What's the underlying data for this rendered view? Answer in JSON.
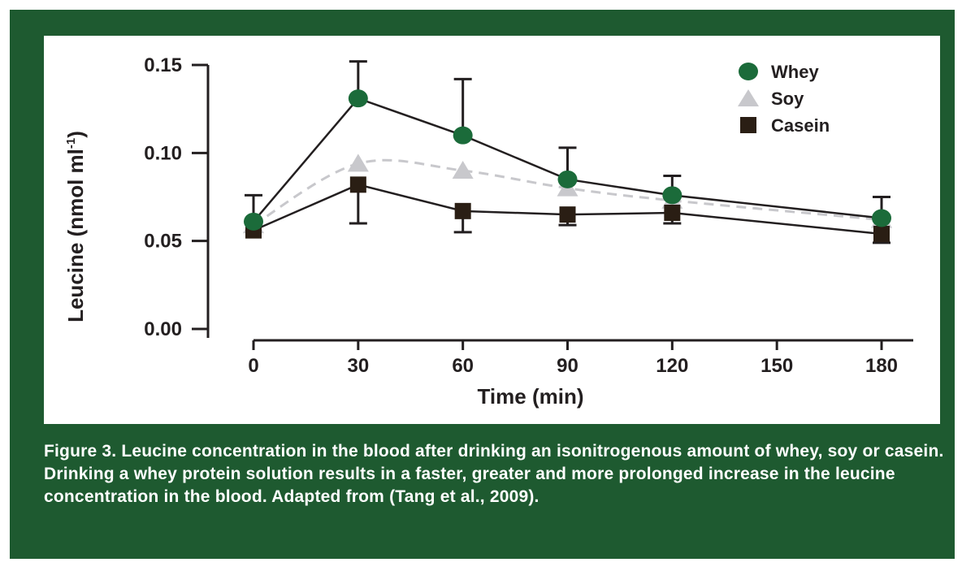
{
  "caption": "Figure 3. Leucine concentration in the blood after drinking an isonitrogenous amount of whey, soy or casein. Drinking a whey protein solution results in a faster, greater and more prolonged increase in the leucine concentration in the blood. Adapted from (Tang et al., 2009).",
  "colors": {
    "frame": "#1e5a30",
    "whey": "#1b6b3a",
    "soy": "#c8c8cc",
    "casein": "#2a1e14",
    "axis": "#231f20"
  },
  "chart_data": {
    "type": "line",
    "xlabel": "Time (min)",
    "ylabel_main": "Leucine (nmol ml",
    "ylabel_sup": "-1",
    "ylabel_close": ")",
    "xlim": [
      0,
      180
    ],
    "ylim": [
      0,
      0.15
    ],
    "xticks": [
      0,
      30,
      60,
      90,
      120,
      150,
      180
    ],
    "xtick_labels": [
      "0",
      "30",
      "60",
      "90",
      "120",
      "150",
      "180"
    ],
    "yticks": [
      0.0,
      0.05,
      0.1,
      0.15
    ],
    "ytick_labels": [
      "0.00",
      "0.05",
      "0.10",
      "0.15"
    ],
    "legend_position": "top-right",
    "series": [
      {
        "name": "Whey",
        "marker": "circle",
        "line": "solid",
        "x": [
          0,
          30,
          60,
          90,
          120,
          180
        ],
        "y": [
          0.061,
          0.131,
          0.11,
          0.085,
          0.076,
          0.063
        ],
        "err_upper": [
          0.076,
          0.152,
          0.142,
          0.103,
          0.087,
          0.075
        ],
        "err_lower": [
          null,
          null,
          null,
          null,
          null,
          null
        ]
      },
      {
        "name": "Soy",
        "marker": "triangle",
        "line": "dashed",
        "x": [
          0,
          30,
          60,
          90,
          120,
          180
        ],
        "y": [
          0.059,
          0.094,
          0.09,
          0.08,
          0.073,
          0.062
        ]
      },
      {
        "name": "Casein",
        "marker": "square",
        "line": "solid",
        "x": [
          0,
          30,
          60,
          90,
          120,
          180
        ],
        "y": [
          0.056,
          0.082,
          0.067,
          0.065,
          0.066,
          0.054
        ],
        "err_upper": [
          null,
          null,
          null,
          null,
          null,
          null
        ],
        "err_lower": [
          null,
          0.06,
          0.055,
          0.059,
          0.06,
          0.049
        ]
      }
    ]
  }
}
